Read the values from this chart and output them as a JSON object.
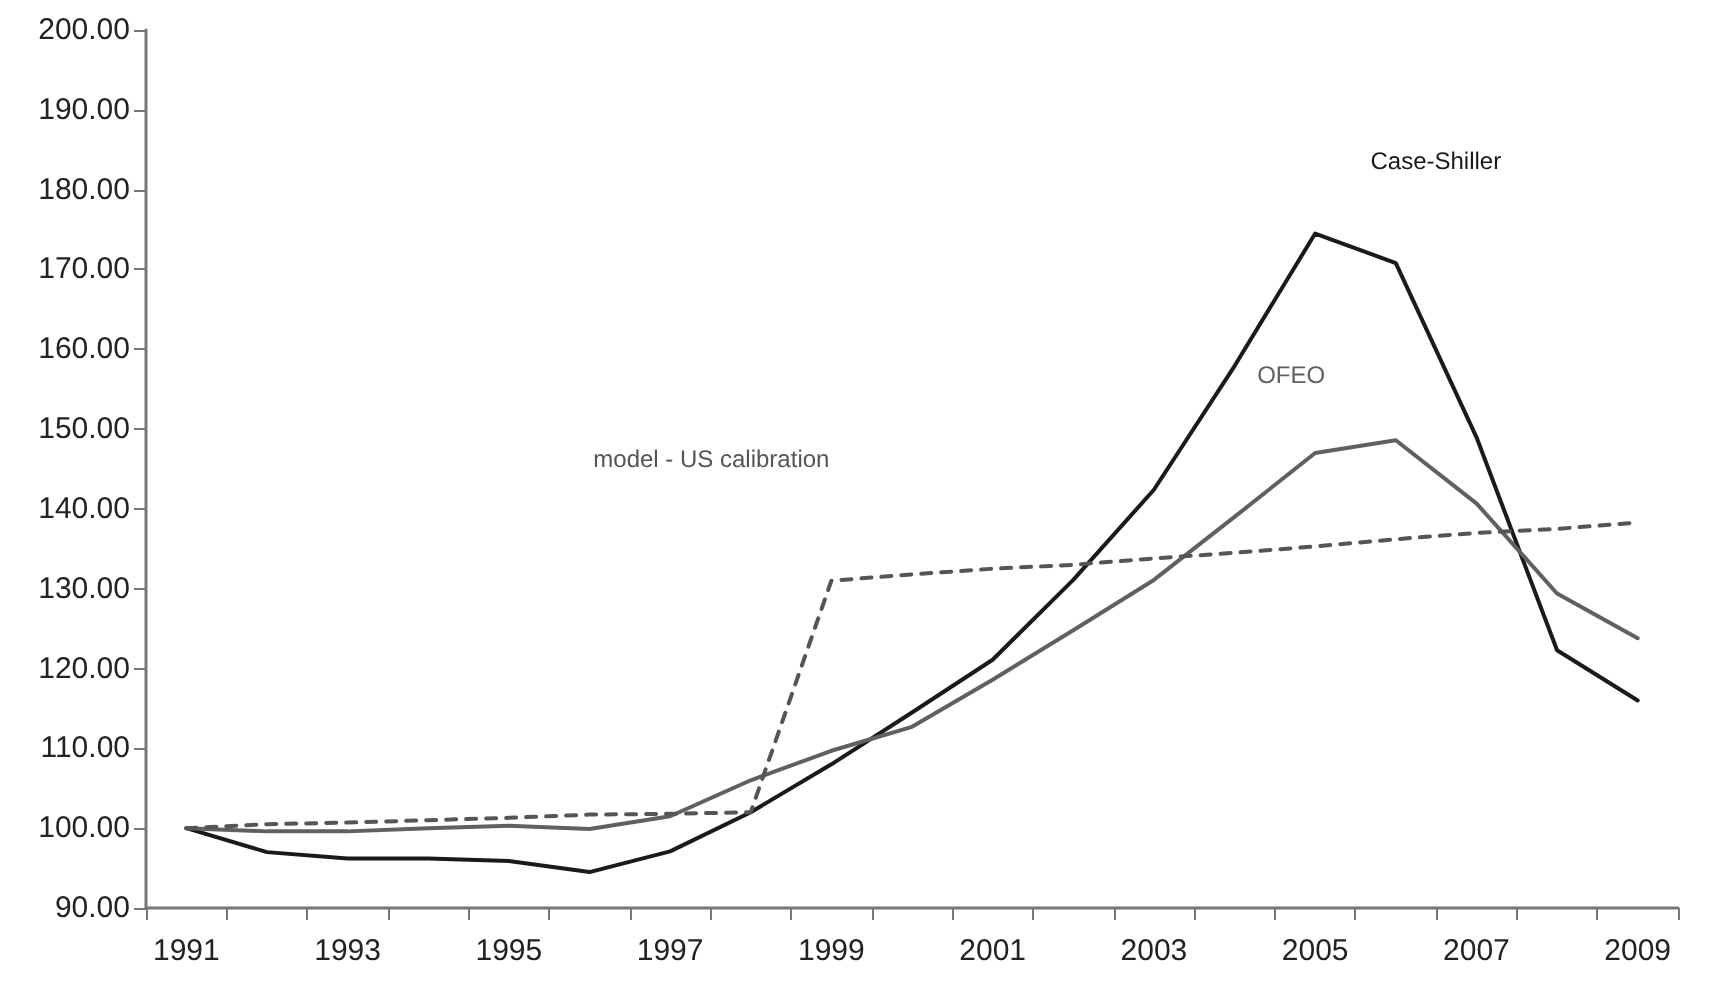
{
  "chart_data": {
    "type": "line",
    "categories": [
      "1991",
      null,
      "1993",
      null,
      "1995",
      null,
      "1997",
      null,
      "1999",
      null,
      "2001",
      null,
      "2003",
      null,
      "2005",
      null,
      "2007",
      null,
      "2009"
    ],
    "series": [
      {
        "name": "Case-Shiller",
        "color": "#1a1a1a",
        "line_style": "solid",
        "values": [
          100,
          97,
          96.2,
          96.2,
          95.9,
          94.5,
          97.1,
          102,
          108,
          114.5,
          121.1,
          131.1,
          142.4,
          157.9,
          174.5,
          170.8,
          149,
          122.3,
          116
        ]
      },
      {
        "name": "OFEO",
        "color": "#606060",
        "line_style": "solid",
        "values": [
          100,
          99.6,
          99.6,
          100,
          100.3,
          99.9,
          101.5,
          106,
          109.7,
          112.7,
          118.6,
          124.8,
          131.1,
          139,
          147,
          148.6,
          140.7,
          129.4,
          123.8
        ]
      },
      {
        "name": "model - US calibration",
        "color": "#555555",
        "line_style": "dashed",
        "values": [
          100,
          100.5,
          100.7,
          101,
          101.3,
          101.7,
          101.8,
          102,
          131,
          131.8,
          132.5,
          133,
          133.8,
          134.5,
          135.3,
          136.2,
          137,
          137.5,
          138.3
        ]
      }
    ],
    "ylim": [
      90,
      200
    ],
    "yticks": [
      {
        "value": 90,
        "label": "90.00"
      },
      {
        "value": 100,
        "label": "100.00"
      },
      {
        "value": 110,
        "label": "110.00"
      },
      {
        "value": 120,
        "label": "120.00"
      },
      {
        "value": 130,
        "label": "130.00"
      },
      {
        "value": 140,
        "label": "140.00"
      },
      {
        "value": 150,
        "label": "150.00"
      },
      {
        "value": 160,
        "label": "160.00"
      },
      {
        "value": 170,
        "label": "170.00"
      },
      {
        "value": 180,
        "label": "180.00"
      },
      {
        "value": 190,
        "label": "190.00"
      },
      {
        "value": 200,
        "label": "200.00"
      }
    ],
    "grid": false,
    "legend": false,
    "marker": "none"
  }
}
